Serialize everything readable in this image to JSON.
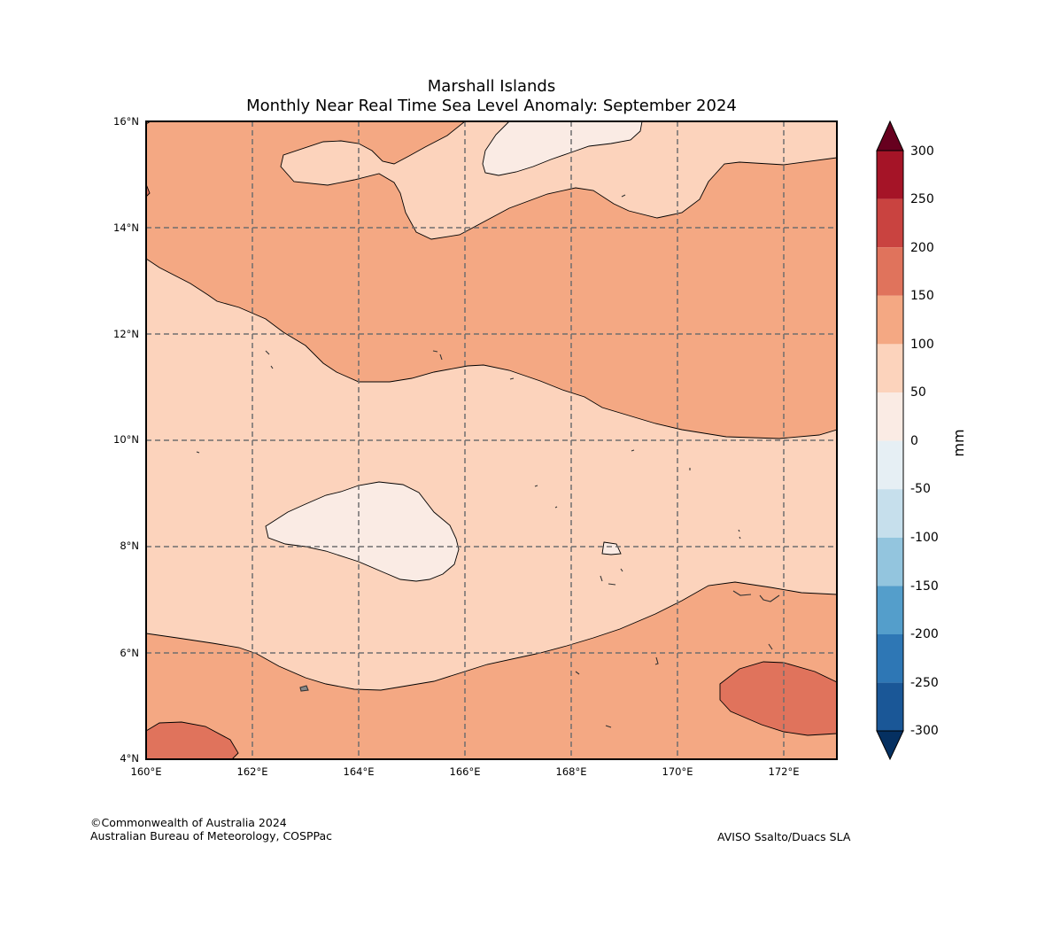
{
  "header": {
    "title_line1": "Marshall Islands",
    "title_line2": "Monthly Near Real Time Sea Level Anomaly: September 2024"
  },
  "map": {
    "lon_labels": [
      "160°E",
      "162°E",
      "164°E",
      "166°E",
      "168°E",
      "170°E",
      "172°E"
    ],
    "lat_labels": [
      "16°N",
      "14°N",
      "12°N",
      "10°N",
      "8°N",
      "6°N",
      "4°N"
    ],
    "lon_range": [
      160,
      173
    ],
    "lat_range": [
      4,
      16
    ]
  },
  "colorbar": {
    "unit_label": "mm",
    "tick_labels": [
      "300",
      "250",
      "200",
      "150",
      "100",
      "50",
      "0",
      "-50",
      "-100",
      "-150",
      "-200",
      "-250",
      "-300"
    ],
    "colors": [
      "#67001f",
      "#a51427",
      "#c94340",
      "#e0735c",
      "#f4a883",
      "#fcd3bc",
      "#faebe4",
      "#e6eff4",
      "#c6dfec",
      "#93c5de",
      "#549ecb",
      "#2e77b5",
      "#1a5797",
      "#053061"
    ]
  },
  "fills": {
    "band_50_100": "#fcd3bc",
    "band_100_150": "#f4a883",
    "band_150_200": "#e0735c",
    "band_0_50": "#faebe4"
  },
  "footer": {
    "copyright": "©Commonwealth of Australia 2024",
    "agency": "Australian Bureau of Meteorology, COSPPac",
    "source": "AVISO Ssalto/Duacs SLA"
  }
}
